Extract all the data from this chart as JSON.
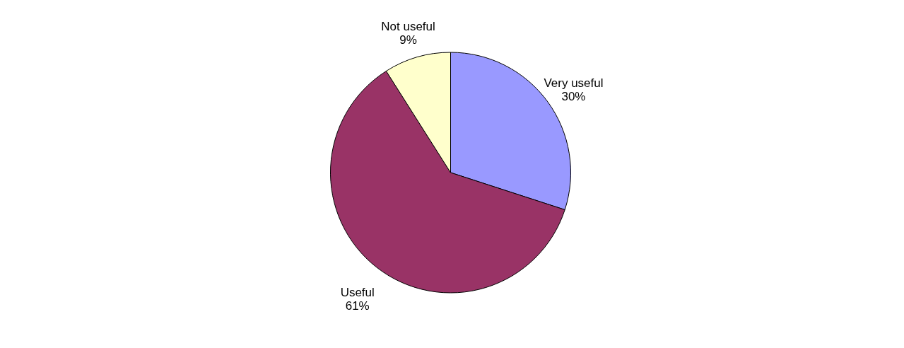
{
  "chart_data": {
    "type": "pie",
    "categories": [
      "Very useful",
      "Useful",
      "Not useful"
    ],
    "values": [
      30,
      61,
      9
    ],
    "colors": [
      "#9999ff",
      "#993366",
      "#ffffcc"
    ],
    "value_labels": [
      "30%",
      "61%",
      "9%"
    ],
    "legend": false
  }
}
